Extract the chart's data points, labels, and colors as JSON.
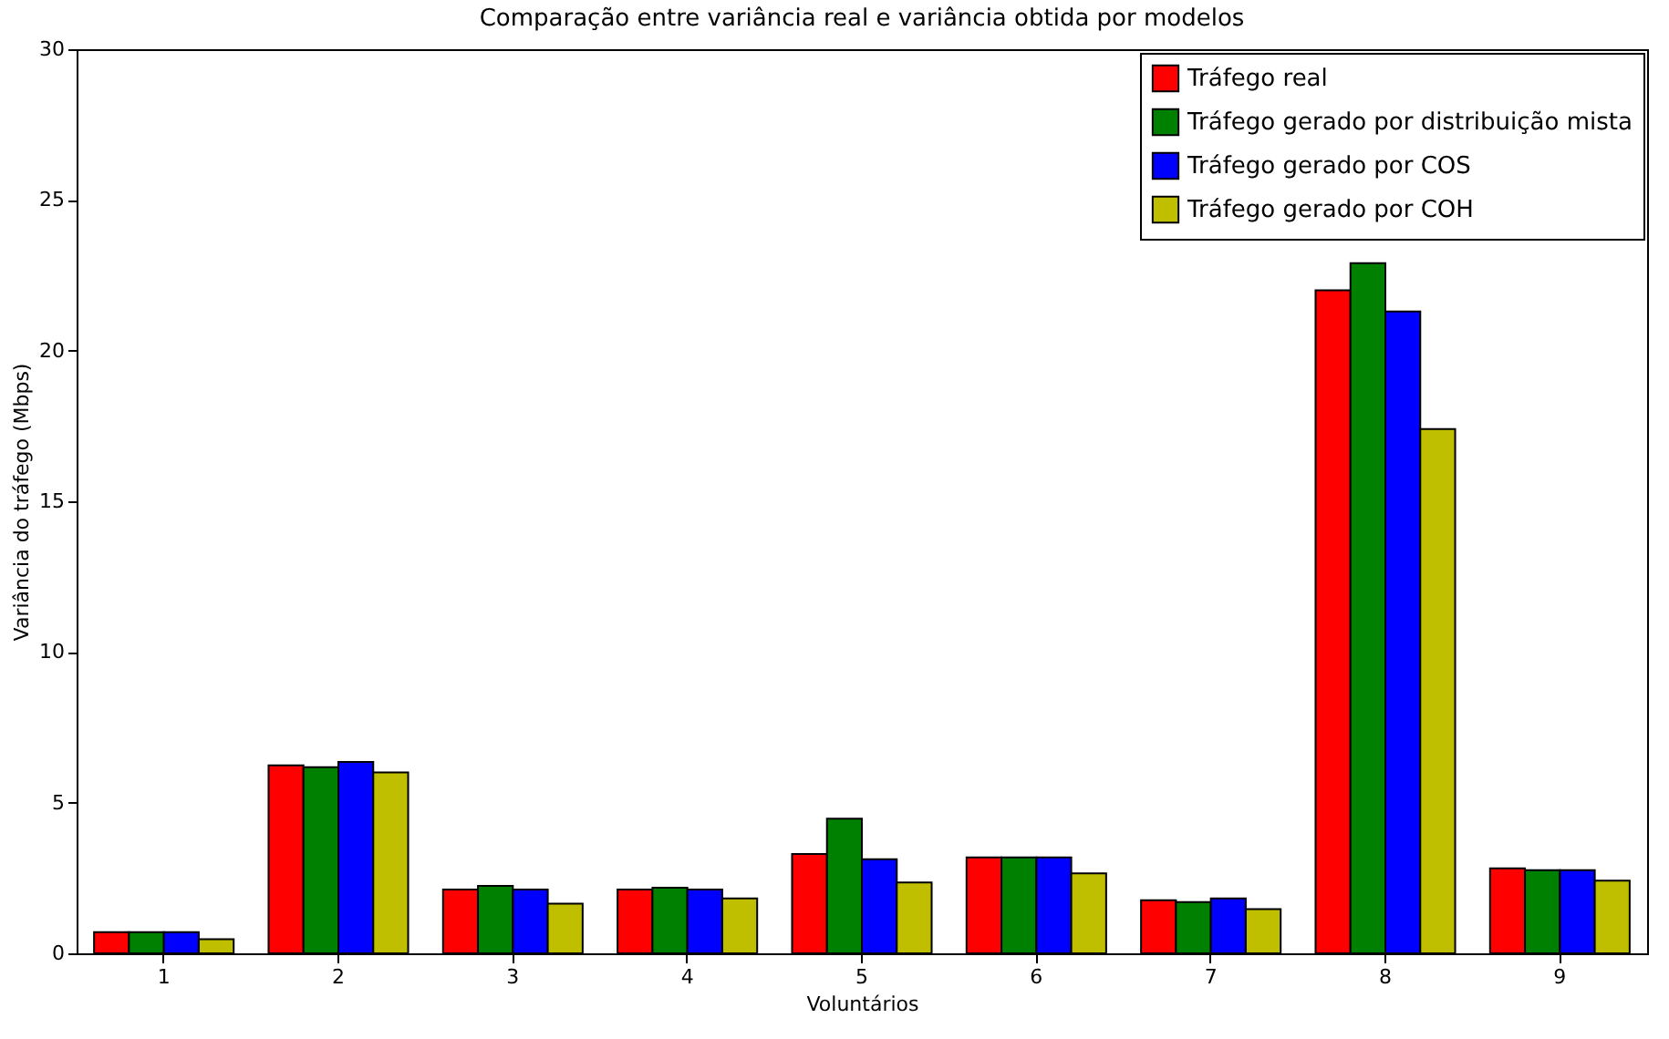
{
  "chart_data": {
    "type": "bar",
    "title": "Comparação entre variância real e variância obtida por modelos",
    "xlabel": "Voluntários",
    "ylabel": "Variância do tráfego (Mbps)",
    "categories": [
      "1",
      "2",
      "3",
      "4",
      "5",
      "6",
      "7",
      "8",
      "9"
    ],
    "series": [
      {
        "name": "Tráfego real",
        "color": "#ff0000",
        "values": [
          0.7,
          6.24,
          2.12,
          2.12,
          3.3,
          3.18,
          1.76,
          22.0,
          2.82
        ]
      },
      {
        "name": "Tráfego gerado por distribuição mista",
        "color": "#008000",
        "values": [
          0.7,
          6.18,
          2.24,
          2.18,
          4.47,
          3.18,
          1.7,
          22.9,
          2.76
        ]
      },
      {
        "name": "Tráfego gerado por COS",
        "color": "#0000ff",
        "values": [
          0.7,
          6.35,
          2.12,
          2.12,
          3.12,
          3.18,
          1.82,
          21.3,
          2.76
        ]
      },
      {
        "name": "Tráfego gerado por COH",
        "color": "#bfbf00",
        "values": [
          0.47,
          6.0,
          1.65,
          1.82,
          2.35,
          2.65,
          1.47,
          17.4,
          2.41
        ]
      }
    ],
    "ylim": [
      0,
      30
    ],
    "yticks": [
      0,
      5,
      10,
      15,
      20,
      25,
      30
    ],
    "grid": false,
    "legend": "top right"
  }
}
